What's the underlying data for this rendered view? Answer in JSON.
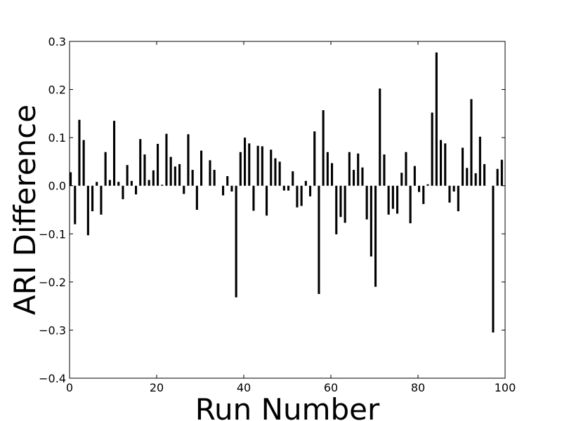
{
  "chart_data": {
    "type": "bar",
    "title": "",
    "xlabel": "Run Number",
    "ylabel": "ARI Difference",
    "xlim": [
      0,
      100
    ],
    "ylim": [
      -0.4,
      0.3
    ],
    "xticks": [
      0,
      20,
      40,
      60,
      80,
      100
    ],
    "xtick_labels": [
      "0",
      "20",
      "40",
      "60",
      "80",
      "100"
    ],
    "yticks": [
      -0.4,
      -0.3,
      -0.2,
      -0.1,
      0.0,
      0.1,
      0.2,
      0.3
    ],
    "ytick_labels": [
      "−0.4",
      "−0.3",
      "−0.2",
      "−0.1",
      "0.0",
      "0.1",
      "0.2",
      "0.3"
    ],
    "grid": false,
    "bar_color": "#000000",
    "series": [
      {
        "x": [
          0,
          1,
          2,
          3,
          4,
          5,
          6,
          7,
          8,
          9,
          10,
          11,
          12,
          13,
          14,
          15,
          16,
          17,
          18,
          19,
          20,
          21,
          22,
          23,
          24,
          25,
          26,
          27,
          28,
          29,
          30,
          31,
          32,
          33,
          34,
          35,
          36,
          37,
          38,
          39,
          40,
          41,
          42,
          43,
          44,
          45,
          46,
          47,
          48,
          49,
          50,
          51,
          52,
          53,
          54,
          55,
          56,
          57,
          58,
          59,
          60,
          61,
          62,
          63,
          64,
          65,
          66,
          67,
          68,
          69,
          70,
          71,
          72,
          73,
          74,
          75,
          76,
          77,
          78,
          79,
          80,
          81,
          82,
          83,
          84,
          85,
          86,
          87,
          88,
          89,
          90,
          91,
          92,
          93,
          94,
          95,
          96,
          97,
          98,
          99
        ],
        "values": [
          0.028,
          -0.08,
          0.137,
          0.095,
          -0.103,
          -0.053,
          0.008,
          -0.06,
          0.07,
          0.012,
          0.135,
          0.008,
          -0.028,
          0.043,
          0.01,
          -0.018,
          0.097,
          0.065,
          0.012,
          0.032,
          0.087,
          0.002,
          0.108,
          0.06,
          0.04,
          0.045,
          -0.017,
          0.107,
          0.033,
          -0.05,
          0.073,
          0.0,
          0.053,
          0.033,
          0.0,
          -0.02,
          0.02,
          -0.012,
          -0.232,
          0.07,
          0.1,
          0.088,
          -0.052,
          0.083,
          0.082,
          -0.062,
          0.075,
          0.057,
          0.05,
          -0.01,
          -0.01,
          0.03,
          -0.045,
          -0.042,
          0.01,
          -0.022,
          0.113,
          -0.225,
          0.157,
          0.07,
          0.047,
          -0.101,
          -0.065,
          -0.077,
          0.07,
          0.033,
          0.067,
          0.038,
          -0.07,
          -0.147,
          -0.21,
          0.202,
          0.065,
          -0.06,
          -0.048,
          -0.058,
          0.027,
          0.07,
          -0.078,
          0.041,
          -0.013,
          -0.038,
          0.003,
          0.152,
          0.277,
          0.095,
          0.088,
          -0.035,
          -0.012,
          -0.053,
          0.079,
          0.037,
          0.18,
          0.026,
          0.102,
          0.045,
          0.0,
          -0.305,
          0.035,
          0.054
        ]
      }
    ]
  }
}
